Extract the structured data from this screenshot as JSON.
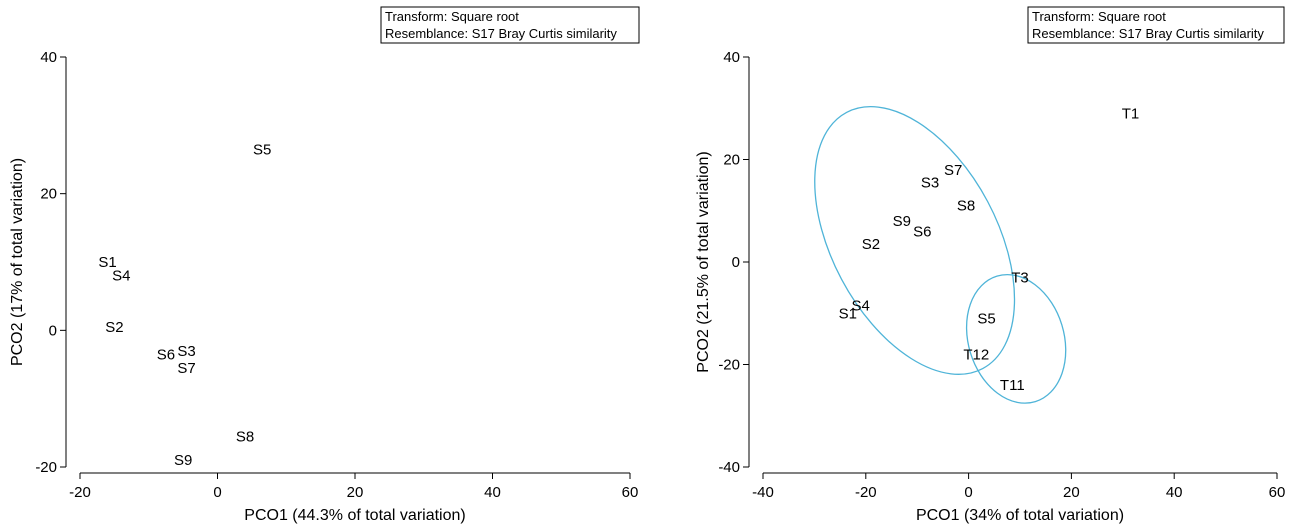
{
  "chart_data": [
    {
      "type": "scatter",
      "legend_box": [
        "Transform: Square root",
        "Resemblance: S17 Bray Curtis similarity"
      ],
      "legend_position": "top-right",
      "xlabel": "PCO1 (44.3% of total variation)",
      "ylabel": "PCO2 (17% of total variation)",
      "xlim": [
        -20,
        60
      ],
      "ylim": [
        -20,
        40
      ],
      "xticks": [
        -20,
        0,
        20,
        40,
        60
      ],
      "yticks": [
        -20,
        0,
        20,
        40
      ],
      "points": [
        {
          "label": "S5",
          "x": 6.5,
          "y": 26.5
        },
        {
          "label": "S1",
          "x": -16,
          "y": 10
        },
        {
          "label": "S4",
          "x": -14,
          "y": 8
        },
        {
          "label": "S2",
          "x": -15,
          "y": 0.5
        },
        {
          "label": "S6",
          "x": -7.5,
          "y": -3.5
        },
        {
          "label": "S3",
          "x": -4.5,
          "y": -3
        },
        {
          "label": "S7",
          "x": -4.5,
          "y": -5.5
        },
        {
          "label": "S8",
          "x": 4,
          "y": -15.5
        },
        {
          "label": "S9",
          "x": -5,
          "y": -19
        }
      ],
      "ellipses": []
    },
    {
      "type": "scatter",
      "legend_box": [
        "Transform: Square root",
        "Resemblance: S17 Bray Curtis similarity"
      ],
      "legend_position": "top-right",
      "xlabel": "PCO1 (34% of total variation)",
      "ylabel": "PCO2 (21.5% of total variation)",
      "xlim": [
        -40,
        60
      ],
      "ylim": [
        -40,
        40
      ],
      "xticks": [
        -40,
        -20,
        0,
        20,
        40,
        60
      ],
      "yticks": [
        -40,
        -20,
        0,
        20,
        40
      ],
      "points": [
        {
          "label": "T1",
          "x": 31.5,
          "y": 29
        },
        {
          "label": "S7",
          "x": -3,
          "y": 18
        },
        {
          "label": "S3",
          "x": -7.5,
          "y": 15.5
        },
        {
          "label": "S8",
          "x": -0.5,
          "y": 11
        },
        {
          "label": "S9",
          "x": -13,
          "y": 8
        },
        {
          "label": "S6",
          "x": -9,
          "y": 6
        },
        {
          "label": "S2",
          "x": -19,
          "y": 3.5
        },
        {
          "label": "T3",
          "x": 10,
          "y": -3
        },
        {
          "label": "S4",
          "x": -21,
          "y": -8.5
        },
        {
          "label": "S1",
          "x": -23.5,
          "y": -10
        },
        {
          "label": "S5",
          "x": 3.5,
          "y": -11
        },
        {
          "label": "T12",
          "x": 1.5,
          "y": -18
        },
        {
          "label": "T11",
          "x": 8.5,
          "y": -24
        }
      ],
      "ellipses": [
        {
          "cx": -10.5,
          "cy": 4.2,
          "rx": 16.1,
          "ry": 28.3,
          "angle": -28
        },
        {
          "cx": 9.25,
          "cy": -15,
          "rx": 9.3,
          "ry": 12.8,
          "angle": -17
        }
      ],
      "ellipse_color": "#4fb4d8"
    }
  ]
}
